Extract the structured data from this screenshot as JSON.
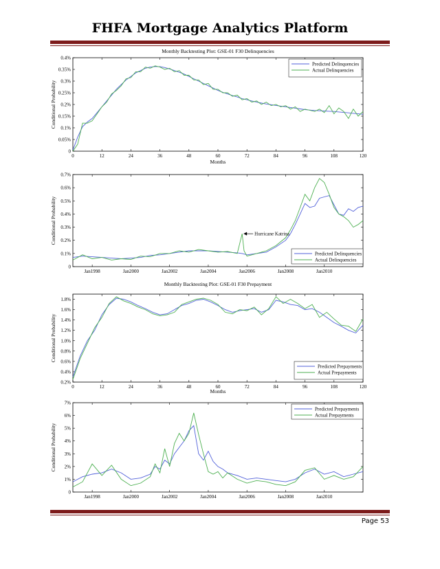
{
  "page": {
    "title": "FHFA Mortgage Analytics Platform",
    "page_number": "Page 53",
    "accent_color": "#7d1b1b"
  },
  "chart_data": [
    {
      "type": "line",
      "title": "Monthly Backtesting Plot: GSE-01 F30 Delinquencies",
      "xlabel": "Months",
      "ylabel": "Conditional Probability",
      "xlim": [
        0,
        120
      ],
      "ylim": [
        0,
        0.4
      ],
      "xticks": [
        0,
        12,
        24,
        36,
        48,
        60,
        72,
        84,
        96,
        108,
        120
      ],
      "xtick_labels": [
        "0",
        "12",
        "24",
        "36",
        "48",
        "60",
        "72",
        "84",
        "96",
        "108",
        "120"
      ],
      "yticks": [
        0,
        0.05,
        0.1,
        0.15,
        0.2,
        0.25,
        0.3,
        0.35,
        0.4
      ],
      "ytick_labels": [
        "0",
        "0.05%",
        "0.1%",
        "0.15%",
        "0.2%",
        "0.25%",
        "0.3%",
        "0.35%",
        "0.4%"
      ],
      "legend_position": "top-right",
      "annotations": [],
      "series": [
        {
          "name": "Predicted Delinquencies",
          "color": "#4f5fd9",
          "x": [
            0,
            2,
            4,
            6,
            8,
            10,
            12,
            14,
            16,
            18,
            20,
            22,
            24,
            26,
            28,
            30,
            32,
            34,
            36,
            38,
            40,
            42,
            44,
            46,
            48,
            50,
            52,
            54,
            56,
            58,
            60,
            62,
            64,
            66,
            68,
            70,
            72,
            74,
            76,
            78,
            80,
            82,
            84,
            86,
            88,
            90,
            92,
            94,
            96,
            98,
            100,
            102,
            104,
            106,
            108,
            110,
            112,
            114,
            116,
            118,
            120
          ],
          "values": [
            0.005,
            0.06,
            0.105,
            0.125,
            0.14,
            0.165,
            0.19,
            0.215,
            0.24,
            0.265,
            0.285,
            0.305,
            0.32,
            0.335,
            0.345,
            0.355,
            0.36,
            0.362,
            0.362,
            0.358,
            0.352,
            0.345,
            0.338,
            0.33,
            0.32,
            0.31,
            0.3,
            0.29,
            0.28,
            0.27,
            0.26,
            0.252,
            0.245,
            0.238,
            0.232,
            0.225,
            0.22,
            0.215,
            0.21,
            0.206,
            0.202,
            0.199,
            0.196,
            0.193,
            0.19,
            0.187,
            0.184,
            0.181,
            0.178,
            0.176,
            0.174,
            0.173,
            0.172,
            0.171,
            0.17,
            0.168,
            0.166,
            0.164,
            0.162,
            0.16,
            0.158
          ]
        },
        {
          "name": "Actual Delinquencies",
          "color": "#4caf50",
          "x": [
            0,
            2,
            4,
            6,
            8,
            10,
            12,
            14,
            16,
            18,
            20,
            22,
            24,
            26,
            28,
            30,
            32,
            34,
            36,
            38,
            40,
            42,
            44,
            46,
            48,
            50,
            52,
            54,
            56,
            58,
            60,
            62,
            64,
            66,
            68,
            70,
            72,
            74,
            76,
            78,
            80,
            82,
            84,
            86,
            88,
            90,
            92,
            94,
            96,
            98,
            100,
            102,
            104,
            106,
            108,
            110,
            112,
            114,
            116,
            118,
            120
          ],
          "values": [
            0.0,
            0.03,
            0.12,
            0.12,
            0.13,
            0.16,
            0.19,
            0.21,
            0.245,
            0.26,
            0.28,
            0.31,
            0.315,
            0.34,
            0.34,
            0.36,
            0.355,
            0.365,
            0.36,
            0.35,
            0.355,
            0.34,
            0.345,
            0.325,
            0.325,
            0.305,
            0.305,
            0.285,
            0.29,
            0.265,
            0.265,
            0.25,
            0.25,
            0.235,
            0.24,
            0.22,
            0.225,
            0.21,
            0.215,
            0.2,
            0.21,
            0.195,
            0.2,
            0.19,
            0.195,
            0.18,
            0.19,
            0.17,
            0.18,
            0.175,
            0.17,
            0.18,
            0.165,
            0.195,
            0.16,
            0.185,
            0.17,
            0.14,
            0.18,
            0.15,
            0.17
          ]
        }
      ]
    },
    {
      "type": "line",
      "title": "",
      "xlabel": "",
      "ylabel": "Conditional Probability",
      "xlim": [
        1997,
        2012
      ],
      "ylim": [
        0,
        0.7
      ],
      "xticks": [
        1998,
        2000,
        2002,
        2004,
        2006,
        2008,
        2010
      ],
      "xtick_labels": [
        "Jan1998",
        "Jan2000",
        "Jan2002",
        "Jan2004",
        "Jan2006",
        "Jan2008",
        "Jan2010"
      ],
      "yticks": [
        0,
        0.1,
        0.2,
        0.3,
        0.4,
        0.5,
        0.6,
        0.7
      ],
      "ytick_labels": [
        "0",
        "0.1%",
        "0.2%",
        "0.3%",
        "0.4%",
        "0.5%",
        "0.6%",
        "0.7%"
      ],
      "legend_position": "bottom-right",
      "annotations": [
        {
          "text": "Hurricane Katrina",
          "x": 2005.75,
          "y": 0.25
        }
      ],
      "series": [
        {
          "name": "Predicted Delinquencies",
          "color": "#4f5fd9",
          "x": [
            1997,
            1997.5,
            1998,
            1998.5,
            1999,
            1999.5,
            2000,
            2000.5,
            2001,
            2001.5,
            2002,
            2002.5,
            2003,
            2003.5,
            2004,
            2004.5,
            2005,
            2005.5,
            2005.75,
            2006,
            2006.5,
            2007,
            2007.5,
            2008,
            2008.25,
            2008.5,
            2008.75,
            2009,
            2009.25,
            2009.5,
            2009.75,
            2010,
            2010.25,
            2010.5,
            2010.75,
            2011,
            2011.25,
            2011.5,
            2011.75,
            2012
          ],
          "values": [
            0.07,
            0.08,
            0.075,
            0.07,
            0.065,
            0.06,
            0.065,
            0.07,
            0.085,
            0.09,
            0.1,
            0.11,
            0.12,
            0.12,
            0.12,
            0.115,
            0.11,
            0.105,
            0.1,
            0.09,
            0.1,
            0.11,
            0.15,
            0.2,
            0.25,
            0.32,
            0.4,
            0.48,
            0.45,
            0.46,
            0.52,
            0.53,
            0.54,
            0.47,
            0.4,
            0.39,
            0.44,
            0.42,
            0.45,
            0.46
          ]
        },
        {
          "name": "Actual Delinquencies",
          "color": "#4caf50",
          "x": [
            1997,
            1997.5,
            1998,
            1998.5,
            1999,
            1999.5,
            2000,
            2000.5,
            2001,
            2001.5,
            2002,
            2002.5,
            2003,
            2003.5,
            2004,
            2004.5,
            2005,
            2005.5,
            2005.75,
            2005.85,
            2006,
            2006.5,
            2007,
            2007.5,
            2008,
            2008.25,
            2008.5,
            2008.75,
            2009,
            2009.25,
            2009.5,
            2009.75,
            2010,
            2010.25,
            2010.5,
            2010.75,
            2011,
            2011.25,
            2011.5,
            2011.75,
            2012
          ],
          "values": [
            0.05,
            0.09,
            0.06,
            0.07,
            0.05,
            0.06,
            0.055,
            0.08,
            0.075,
            0.1,
            0.1,
            0.12,
            0.11,
            0.13,
            0.12,
            0.11,
            0.115,
            0.1,
            0.25,
            0.12,
            0.08,
            0.1,
            0.12,
            0.16,
            0.22,
            0.28,
            0.35,
            0.45,
            0.55,
            0.5,
            0.6,
            0.67,
            0.64,
            0.55,
            0.45,
            0.4,
            0.38,
            0.35,
            0.3,
            0.32,
            0.35
          ]
        }
      ]
    },
    {
      "type": "line",
      "title": "Monthly Backtesting Plot: GSE-01 F30 Prepayment",
      "xlabel": "Months",
      "ylabel": "Conditional Probability",
      "xlim": [
        0,
        120
      ],
      "ylim": [
        0.2,
        1.9
      ],
      "xticks": [
        0,
        12,
        24,
        36,
        48,
        60,
        72,
        84,
        96,
        108,
        120
      ],
      "xtick_labels": [
        "0",
        "12",
        "24",
        "36",
        "48",
        "60",
        "72",
        "84",
        "96",
        "108",
        "120"
      ],
      "yticks": [
        0.2,
        0.4,
        0.6,
        0.8,
        1.0,
        1.2,
        1.4,
        1.6,
        1.8
      ],
      "ytick_labels": [
        "0.2%",
        "0.4%",
        "0.6%",
        "0.8%",
        "1.0%",
        "1.2%",
        "1.4%",
        "1.6%",
        "1.8%"
      ],
      "legend_position": "bottom-right",
      "annotations": [],
      "series": [
        {
          "name": "Predicted Prepayments",
          "color": "#4f5fd9",
          "x": [
            0,
            3,
            6,
            9,
            12,
            15,
            18,
            21,
            24,
            27,
            30,
            33,
            36,
            39,
            42,
            45,
            48,
            51,
            54,
            57,
            60,
            63,
            66,
            69,
            72,
            75,
            78,
            81,
            84,
            87,
            90,
            93,
            96,
            99,
            102,
            105,
            108,
            111,
            114,
            117,
            120
          ],
          "values": [
            0.3,
            0.7,
            1.0,
            1.2,
            1.5,
            1.7,
            1.82,
            1.8,
            1.75,
            1.68,
            1.62,
            1.55,
            1.5,
            1.52,
            1.6,
            1.68,
            1.72,
            1.78,
            1.8,
            1.75,
            1.68,
            1.6,
            1.55,
            1.58,
            1.6,
            1.62,
            1.55,
            1.6,
            1.78,
            1.75,
            1.7,
            1.68,
            1.6,
            1.62,
            1.55,
            1.45,
            1.35,
            1.28,
            1.2,
            1.15,
            1.3
          ]
        },
        {
          "name": "Actual Prepayments",
          "color": "#4caf50",
          "x": [
            0,
            3,
            6,
            9,
            12,
            15,
            18,
            21,
            24,
            27,
            30,
            33,
            36,
            39,
            42,
            45,
            48,
            51,
            54,
            57,
            60,
            63,
            66,
            69,
            72,
            75,
            78,
            81,
            84,
            87,
            90,
            93,
            96,
            99,
            102,
            105,
            108,
            111,
            114,
            117,
            120
          ],
          "values": [
            0.25,
            0.65,
            0.95,
            1.25,
            1.45,
            1.72,
            1.85,
            1.77,
            1.72,
            1.65,
            1.6,
            1.52,
            1.48,
            1.5,
            1.55,
            1.7,
            1.75,
            1.8,
            1.82,
            1.78,
            1.7,
            1.55,
            1.52,
            1.6,
            1.58,
            1.65,
            1.5,
            1.62,
            1.85,
            1.72,
            1.8,
            1.72,
            1.62,
            1.7,
            1.45,
            1.55,
            1.42,
            1.3,
            1.28,
            1.18,
            1.42
          ]
        }
      ]
    },
    {
      "type": "line",
      "title": "",
      "xlabel": "",
      "ylabel": "Conditional Probability",
      "xlim": [
        1997,
        2012
      ],
      "ylim": [
        0,
        7
      ],
      "xticks": [
        1998,
        2000,
        2002,
        2004,
        2006,
        2008,
        2010
      ],
      "xtick_labels": [
        "Jan1998",
        "Jan2000",
        "Jan2002",
        "Jan2004",
        "Jan2006",
        "Jan2008",
        "Jan2010"
      ],
      "yticks": [
        0,
        1,
        2,
        3,
        4,
        5,
        6,
        7
      ],
      "ytick_labels": [
        "0",
        "1%",
        "2%",
        "3%",
        "4%",
        "5%",
        "6%",
        "7%"
      ],
      "legend_position": "top-right",
      "annotations": [],
      "series": [
        {
          "name": "Predicted Prepayments",
          "color": "#4f5fd9",
          "x": [
            1997,
            1997.5,
            1998,
            1998.5,
            1999,
            1999.5,
            2000,
            2000.5,
            2001,
            2001.25,
            2001.5,
            2001.75,
            2002,
            2002.25,
            2002.5,
            2002.75,
            2003,
            2003.25,
            2003.5,
            2003.75,
            2004,
            2004.25,
            2004.5,
            2004.75,
            2005,
            2005.5,
            2006,
            2006.5,
            2007,
            2007.5,
            2008,
            2008.5,
            2009,
            2009.5,
            2010,
            2010.5,
            2011,
            2011.5,
            2012
          ],
          "values": [
            0.8,
            1.2,
            1.4,
            1.5,
            1.8,
            1.5,
            1.0,
            1.1,
            1.4,
            2.0,
            1.8,
            2.5,
            2.2,
            3.0,
            3.5,
            4.0,
            4.8,
            5.2,
            3.0,
            2.5,
            3.2,
            2.4,
            2.0,
            1.8,
            1.5,
            1.3,
            1.0,
            1.1,
            1.0,
            0.9,
            0.8,
            1.0,
            1.5,
            1.8,
            1.4,
            1.6,
            1.2,
            1.4,
            1.6
          ]
        },
        {
          "name": "Actual Prepayments",
          "color": "#4caf50",
          "x": [
            1997,
            1997.5,
            1998,
            1998.5,
            1999,
            1999.5,
            2000,
            2000.5,
            2001,
            2001.25,
            2001.5,
            2001.75,
            2002,
            2002.25,
            2002.5,
            2002.75,
            2003,
            2003.25,
            2003.5,
            2003.75,
            2004,
            2004.25,
            2004.5,
            2004.75,
            2005,
            2005.5,
            2006,
            2006.5,
            2007,
            2007.5,
            2008,
            2008.5,
            2009,
            2009.5,
            2010,
            2010.5,
            2011,
            2011.5,
            2012
          ],
          "values": [
            0.4,
            0.8,
            2.2,
            1.3,
            2.1,
            1.0,
            0.5,
            0.7,
            1.2,
            2.2,
            1.5,
            3.4,
            2.0,
            3.8,
            4.6,
            4.0,
            4.6,
            6.2,
            4.5,
            3.0,
            1.6,
            1.4,
            1.6,
            1.1,
            1.5,
            1.0,
            0.7,
            0.9,
            0.8,
            0.6,
            0.5,
            0.8,
            1.7,
            1.9,
            1.0,
            1.3,
            1.0,
            1.2,
            2.0
          ]
        }
      ]
    }
  ]
}
